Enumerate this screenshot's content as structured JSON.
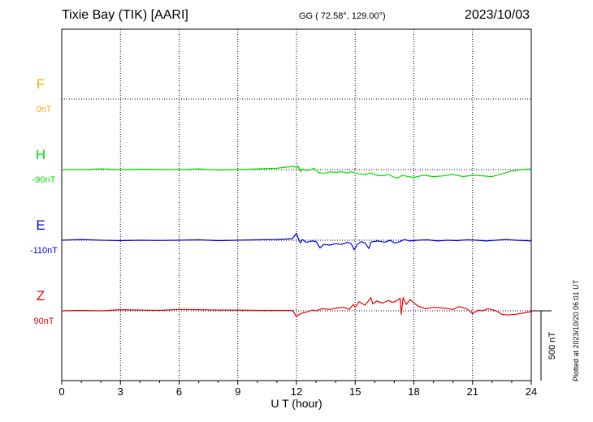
{
  "header": {
    "station": "Tixie Bay (TIK)  [AARI]",
    "coords": "GG ( 72.58°, 129.00°)",
    "date": "2023/10/03"
  },
  "plotted": "Plotted at 2023/10/20 06:01 UT",
  "chart_data": {
    "type": "line",
    "xlabel": "U T (hour)",
    "xlim": [
      0,
      24
    ],
    "xticks": [
      0,
      3,
      6,
      9,
      12,
      15,
      18,
      21,
      24
    ],
    "scale_bar": "500 nT",
    "grid": "dotted vertical lines every 3 h; dotted baseline per component",
    "series": [
      {
        "name": "F",
        "baseline": "0nT",
        "color": "#ffaa00",
        "x": [],
        "y": []
      },
      {
        "name": "H",
        "baseline": "-90nT",
        "color": "#00dd00",
        "x": [
          0,
          1,
          2,
          3,
          4,
          5,
          6,
          7,
          8,
          9,
          10,
          11,
          11.5,
          11.9,
          12.0,
          12.1,
          12.2,
          12.3,
          12.5,
          12.7,
          12.9,
          13.1,
          13.3,
          13.5,
          13.7,
          14.0,
          14.3,
          14.6,
          14.8,
          15.0,
          15.2,
          15.5,
          15.8,
          16.1,
          16.4,
          16.7,
          17.0,
          17.2,
          17.4,
          17.7,
          18.0,
          18.5,
          19.0,
          19.5,
          20.0,
          20.5,
          21.0,
          21.5,
          22.0,
          22.5,
          23.0,
          23.5,
          24.0
        ],
        "y": [
          0,
          0,
          5,
          0,
          3,
          2,
          0,
          5,
          -3,
          0,
          5,
          10,
          18,
          24,
          10,
          25,
          -15,
          5,
          -5,
          -3,
          10,
          -20,
          -25,
          -25,
          -15,
          -20,
          -15,
          -25,
          -15,
          -25,
          -30,
          -35,
          -25,
          -40,
          -45,
          -35,
          -55,
          -60,
          -40,
          -50,
          -55,
          -40,
          -50,
          -45,
          -35,
          -50,
          -40,
          -45,
          -50,
          -30,
          -10,
          0,
          5
        ]
      },
      {
        "name": "E",
        "baseline": "-110nT",
        "color": "#0000dd",
        "x": [
          0,
          1,
          2,
          3,
          4,
          5,
          6,
          7,
          8,
          9,
          10,
          11,
          11.5,
          11.8,
          12.0,
          12.1,
          12.2,
          12.3,
          12.5,
          12.8,
          13.0,
          13.2,
          13.4,
          13.7,
          14.0,
          14.3,
          14.6,
          14.8,
          14.95,
          15.1,
          15.3,
          15.5,
          15.7,
          15.8,
          15.9,
          16.2,
          16.5,
          16.8,
          17.0,
          17.3,
          17.5,
          17.8,
          18.2,
          18.7,
          19.2,
          19.7,
          20.2,
          20.7,
          21.2,
          21.7,
          22.2,
          22.7,
          23.2,
          23.7,
          24.0
        ],
        "y": [
          0,
          5,
          0,
          -3,
          0,
          -2,
          0,
          3,
          -3,
          0,
          3,
          5,
          8,
          12,
          50,
          10,
          -20,
          5,
          -15,
          -5,
          -10,
          -55,
          -30,
          -35,
          -25,
          -30,
          -15,
          -25,
          -70,
          -30,
          -10,
          -20,
          -60,
          -15,
          -10,
          -5,
          -15,
          0,
          -20,
          -10,
          5,
          -5,
          0,
          3,
          -5,
          0,
          -3,
          3,
          0,
          -5,
          0,
          5,
          0,
          -3,
          -5
        ]
      },
      {
        "name": "Z",
        "baseline": "90nT",
        "color": "#ee0000",
        "x": [
          0,
          1,
          2,
          3,
          4,
          5,
          6,
          7,
          8,
          9,
          10,
          11,
          11.5,
          11.8,
          11.9,
          12.0,
          12.1,
          12.3,
          12.5,
          12.8,
          13.0,
          13.3,
          13.7,
          14.0,
          14.4,
          14.7,
          14.9,
          15.0,
          15.2,
          15.5,
          15.7,
          15.8,
          15.9,
          16.1,
          16.4,
          16.7,
          16.9,
          17.1,
          17.3,
          17.35,
          17.45,
          17.6,
          17.8,
          18.2,
          18.6,
          19.0,
          19.5,
          20.0,
          20.3,
          20.7,
          21.0,
          21.3,
          21.5,
          21.8,
          22.2,
          22.5,
          22.8,
          23.2,
          23.6,
          24.0
        ],
        "y": [
          0,
          3,
          0,
          8,
          5,
          3,
          10,
          8,
          5,
          5,
          3,
          3,
          3,
          3,
          -20,
          -45,
          -30,
          -15,
          -10,
          5,
          0,
          15,
          10,
          20,
          25,
          10,
          45,
          25,
          65,
          40,
          75,
          95,
          50,
          70,
          55,
          75,
          60,
          70,
          90,
          -25,
          95,
          45,
          80,
          35,
          15,
          25,
          20,
          10,
          30,
          15,
          -20,
          5,
          0,
          15,
          0,
          -25,
          -30,
          -25,
          -15,
          -5
        ]
      }
    ]
  }
}
